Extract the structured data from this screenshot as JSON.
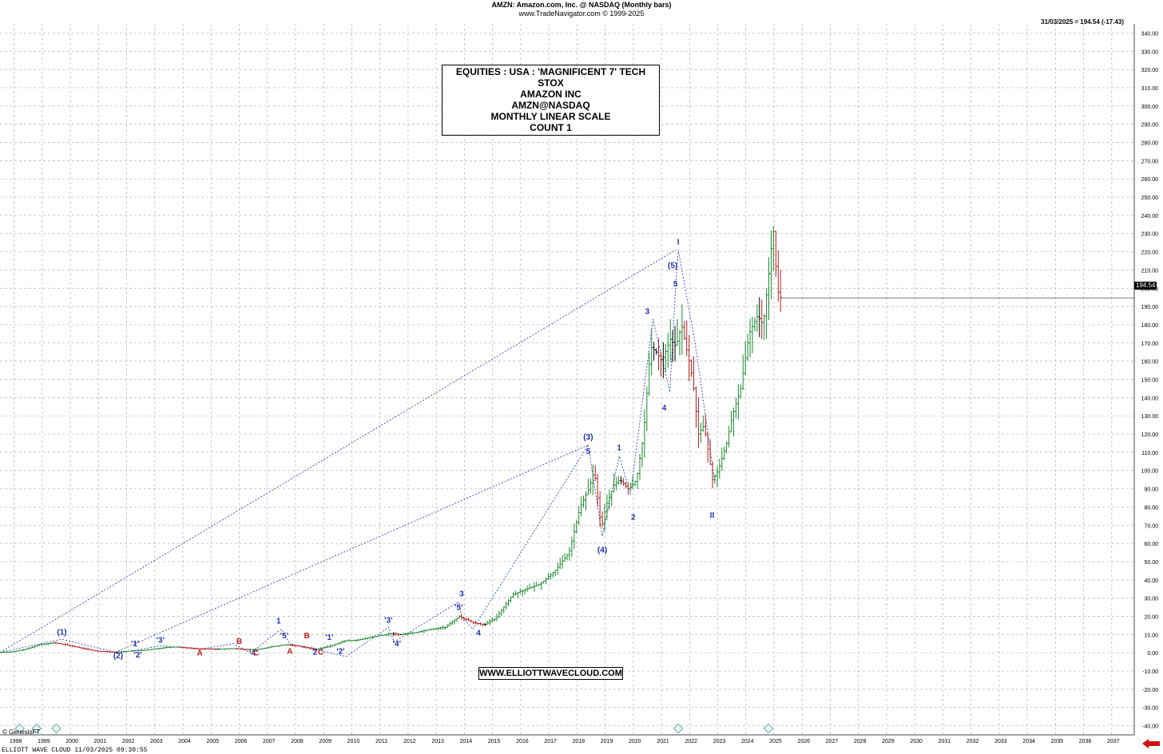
{
  "header": {
    "title": "AMZN:  Amazon.com, Inc. @ NASDAQ  (Monthly bars)",
    "subtitle": "www.TradeNavigator.com © 1999-2025"
  },
  "last_readout": "31/03/2025 = 194.54 (-17.43)",
  "last_price_tag": "194.54",
  "info_box": {
    "line1": "EQUITIES : USA : 'MAGNIFICENT 7' TECH STOX",
    "line2": "AMAZON INC",
    "line3": "AMZN@NASDAQ",
    "line4": "MONTHLY LINEAR SCALE",
    "line5": "COUNT 1"
  },
  "url_box": "WWW.ELLIOTTWAVECLOUD.COM",
  "copyright": "© GenesisFT",
  "footer": "ELLIOTT WAVE CLOUD   11/03/2025 09:30:55",
  "colors": {
    "grid": "#b4b4b4",
    "wave_blue": "#1f2fb0",
    "wave_red": "#c01818",
    "bull_bar": "#1b8a2e",
    "bear_bar": "#b81f1f",
    "neutral_bar": "#000000"
  },
  "chart_data": {
    "type": "ohlc-monthly",
    "x_axis": {
      "range": [
        1997.5,
        2037.8
      ],
      "labels": [
        "1998",
        "1999",
        "2000",
        "2001",
        "2002",
        "2003",
        "2004",
        "2005",
        "2006",
        "2007",
        "2008",
        "2009",
        "2010",
        "2011",
        "2012",
        "2013",
        "2014",
        "2015",
        "2016",
        "2017",
        "2018",
        "2019",
        "2020",
        "2021",
        "2022",
        "2023",
        "2024",
        "2025",
        "2026",
        "2027",
        "2028",
        "2029",
        "2030",
        "2031",
        "2032",
        "2033",
        "2034",
        "2035",
        "2036",
        "2037"
      ]
    },
    "y_axis": {
      "scale": "linear",
      "ylim": [
        -45,
        345
      ],
      "tick_step": 10,
      "tick_labels": [
        "-40.00",
        "-30.00",
        "-20.00",
        "-10.00",
        "0.00",
        "10.00",
        "20.00",
        "30.00",
        "40.00",
        "50.00",
        "60.00",
        "70.00",
        "80.00",
        "90.00",
        "100.00",
        "110.00",
        "120.00",
        "130.00",
        "140.00",
        "150.00",
        "160.00",
        "170.00",
        "180.00",
        "190.00",
        "200.00",
        "210.00",
        "220.00",
        "230.00",
        "240.00",
        "250.00",
        "260.00",
        "270.00",
        "280.00",
        "290.00",
        "300.00",
        "310.00",
        "320.00",
        "330.00",
        "340.00"
      ]
    },
    "price_path": [
      [
        1997.4,
        0.1
      ],
      [
        1998.0,
        0.5
      ],
      [
        1998.5,
        2
      ],
      [
        1999.0,
        4.5
      ],
      [
        1999.5,
        5.5
      ],
      [
        1999.9,
        4.5
      ],
      [
        2000.5,
        2.5
      ],
      [
        2001.0,
        1.0
      ],
      [
        2001.7,
        0.3
      ],
      [
        2002.2,
        1.0
      ],
      [
        2002.8,
        1.5
      ],
      [
        2003.5,
        3.0
      ],
      [
        2003.9,
        3.2
      ],
      [
        2004.6,
        2.2
      ],
      [
        2005.3,
        2.0
      ],
      [
        2005.9,
        2.3
      ],
      [
        2006.4,
        1.8
      ],
      [
        2006.8,
        2.0
      ],
      [
        2007.3,
        3.5
      ],
      [
        2007.8,
        4.5
      ],
      [
        2008.3,
        3.5
      ],
      [
        2008.8,
        2.0
      ],
      [
        2009.3,
        3.5
      ],
      [
        2009.8,
        6.5
      ],
      [
        2010.3,
        7.0
      ],
      [
        2010.9,
        9.0
      ],
      [
        2011.5,
        10.5
      ],
      [
        2011.8,
        10.0
      ],
      [
        2012.3,
        11.0
      ],
      [
        2012.9,
        13.0
      ],
      [
        2013.4,
        14.0
      ],
      [
        2013.9,
        20.0
      ],
      [
        2014.4,
        16.5
      ],
      [
        2014.8,
        15.5
      ],
      [
        2015.2,
        19.0
      ],
      [
        2015.8,
        32.0
      ],
      [
        2016.3,
        35.0
      ],
      [
        2016.8,
        38.0
      ],
      [
        2017.3,
        45.0
      ],
      [
        2017.8,
        55.0
      ],
      [
        2018.2,
        80.0
      ],
      [
        2018.5,
        90.0
      ],
      [
        2018.7,
        100.0
      ],
      [
        2018.95,
        68.0
      ],
      [
        2019.1,
        80.0
      ],
      [
        2019.4,
        92.0
      ],
      [
        2019.6,
        95.0
      ],
      [
        2019.9,
        90.0
      ],
      [
        2020.05,
        92.0
      ],
      [
        2020.2,
        95.0
      ],
      [
        2020.45,
        120.0
      ],
      [
        2020.7,
        168.0
      ],
      [
        2020.9,
        165.0
      ],
      [
        2021.1,
        160.0
      ],
      [
        2021.4,
        172.0
      ],
      [
        2021.6,
        168.0
      ],
      [
        2021.8,
        180.0
      ],
      [
        2022.0,
        165.0
      ],
      [
        2022.2,
        150.0
      ],
      [
        2022.4,
        120.0
      ],
      [
        2022.6,
        125.0
      ],
      [
        2022.9,
        95.0
      ],
      [
        2023.1,
        100.0
      ],
      [
        2023.4,
        115.0
      ],
      [
        2023.6,
        130.0
      ],
      [
        2023.9,
        145.0
      ],
      [
        2024.2,
        175.0
      ],
      [
        2024.5,
        185.0
      ],
      [
        2024.7,
        180.0
      ],
      [
        2024.95,
        215.0
      ],
      [
        2025.05,
        235.0
      ],
      [
        2025.15,
        212.0
      ],
      [
        2025.25,
        195.0
      ]
    ],
    "wave_lines": [
      {
        "name": "primary-dashed",
        "points": [
          [
            1997.5,
            0.2
          ],
          [
            2021.5,
            221.0
          ]
        ]
      },
      {
        "name": "intermediate-dashed",
        "points": [
          [
            2001.6,
            0.3
          ],
          [
            2018.4,
            114.0
          ]
        ]
      },
      {
        "name": "minor-1999",
        "points": [
          [
            1997.5,
            0.2
          ],
          [
            1999.7,
            7.5
          ],
          [
            2001.6,
            0.3
          ]
        ]
      },
      {
        "name": "minor-2002-2009",
        "points": [
          [
            2001.6,
            0.3
          ],
          [
            2002.4,
            1.5
          ],
          [
            2003.2,
            4.0
          ],
          [
            2004.6,
            2.0
          ],
          [
            2005.8,
            5.0
          ],
          [
            2006.4,
            0.0
          ],
          [
            2007.5,
            13.0
          ],
          [
            2007.8,
            5.0
          ],
          [
            2008.8,
            1.0
          ],
          [
            2009.3,
            5.0
          ]
        ]
      },
      {
        "name": "minor-2009-2014",
        "points": [
          [
            2008.9,
            1.0
          ],
          [
            2009.8,
            -2.0
          ],
          [
            2011.3,
            14.0
          ],
          [
            2011.5,
            6.0
          ],
          [
            2013.8,
            28.0
          ],
          [
            2013.9,
            20.0
          ],
          [
            2014.3,
            13.0
          ],
          [
            2018.4,
            114.0
          ],
          [
            2018.9,
            64.0
          ],
          [
            2019.5,
            108.0
          ],
          [
            2019.9,
            87.0
          ],
          [
            2020.7,
            183.0
          ],
          [
            2021.3,
            143.0
          ],
          [
            2021.5,
            200.0
          ],
          [
            2021.6,
            221.0
          ],
          [
            2022.2,
            170.0
          ],
          [
            2022.9,
            93.0
          ]
        ]
      }
    ],
    "wave_labels": [
      {
        "text": "(1)",
        "x": 1999.7,
        "y": 10.0,
        "color": "blue"
      },
      {
        "text": "(2)",
        "x": 2001.7,
        "y": -3.0,
        "color": "blue"
      },
      {
        "text": "'1'",
        "x": 2002.3,
        "y": 3.5,
        "color": "blue"
      },
      {
        "text": "'2'",
        "x": 2002.4,
        "y": -2.5,
        "color": "blue"
      },
      {
        "text": "'3'",
        "x": 2003.2,
        "y": 5.5,
        "color": "blue"
      },
      {
        "text": "A",
        "x": 2004.6,
        "y": -1.5,
        "color": "red"
      },
      {
        "text": "B",
        "x": 2006.0,
        "y": 5.0,
        "color": "red"
      },
      {
        "text": "'4'",
        "x": 2006.5,
        "y": -1.5,
        "color": "blue"
      },
      {
        "text": "C",
        "x": 2006.6,
        "y": -1.5,
        "color": "red"
      },
      {
        "text": "1",
        "x": 2007.4,
        "y": 16.0,
        "color": "blue"
      },
      {
        "text": "'5'",
        "x": 2007.6,
        "y": 8.0,
        "color": "blue"
      },
      {
        "text": "A",
        "x": 2007.8,
        "y": -0.5,
        "color": "red"
      },
      {
        "text": "B",
        "x": 2008.4,
        "y": 8.0,
        "color": "red"
      },
      {
        "text": "2",
        "x": 2008.7,
        "y": -1.0,
        "color": "blue"
      },
      {
        "text": "C",
        "x": 2008.9,
        "y": -1.0,
        "color": "red"
      },
      {
        "text": "'1'",
        "x": 2009.2,
        "y": 7.0,
        "color": "blue"
      },
      {
        "text": "'2'",
        "x": 2009.6,
        "y": -0.5,
        "color": "blue"
      },
      {
        "text": "'3'",
        "x": 2011.3,
        "y": 16.5,
        "color": "blue"
      },
      {
        "text": "'4'",
        "x": 2011.6,
        "y": 3.5,
        "color": "blue"
      },
      {
        "text": "3",
        "x": 2013.9,
        "y": 31.0,
        "color": "blue"
      },
      {
        "text": "'5'",
        "x": 2013.8,
        "y": 23.5,
        "color": "blue"
      },
      {
        "text": "4",
        "x": 2014.5,
        "y": 9.5,
        "color": "blue"
      },
      {
        "text": "(3)",
        "x": 2018.4,
        "y": 117.0,
        "color": "blue"
      },
      {
        "text": "5",
        "x": 2018.4,
        "y": 109.0,
        "color": "blue"
      },
      {
        "text": "(4)",
        "x": 2018.9,
        "y": 55.0,
        "color": "blue"
      },
      {
        "text": "1",
        "x": 2019.5,
        "y": 111.0,
        "color": "blue"
      },
      {
        "text": "2",
        "x": 2020.0,
        "y": 73.0,
        "color": "blue"
      },
      {
        "text": "3",
        "x": 2020.5,
        "y": 186.0,
        "color": "blue"
      },
      {
        "text": "4",
        "x": 2021.1,
        "y": 133.0,
        "color": "blue"
      },
      {
        "text": "(5)",
        "x": 2021.4,
        "y": 211.0,
        "color": "blue"
      },
      {
        "text": "5",
        "x": 2021.5,
        "y": 201.0,
        "color": "blue"
      },
      {
        "text": "I",
        "x": 2021.6,
        "y": 224.0,
        "color": "blue"
      },
      {
        "text": "II",
        "x": 2022.8,
        "y": 74.0,
        "color": "blue"
      }
    ],
    "bottom_markers_x": [
      1998.2,
      1998.8,
      1999.5,
      2021.6,
      2024.8
    ]
  }
}
